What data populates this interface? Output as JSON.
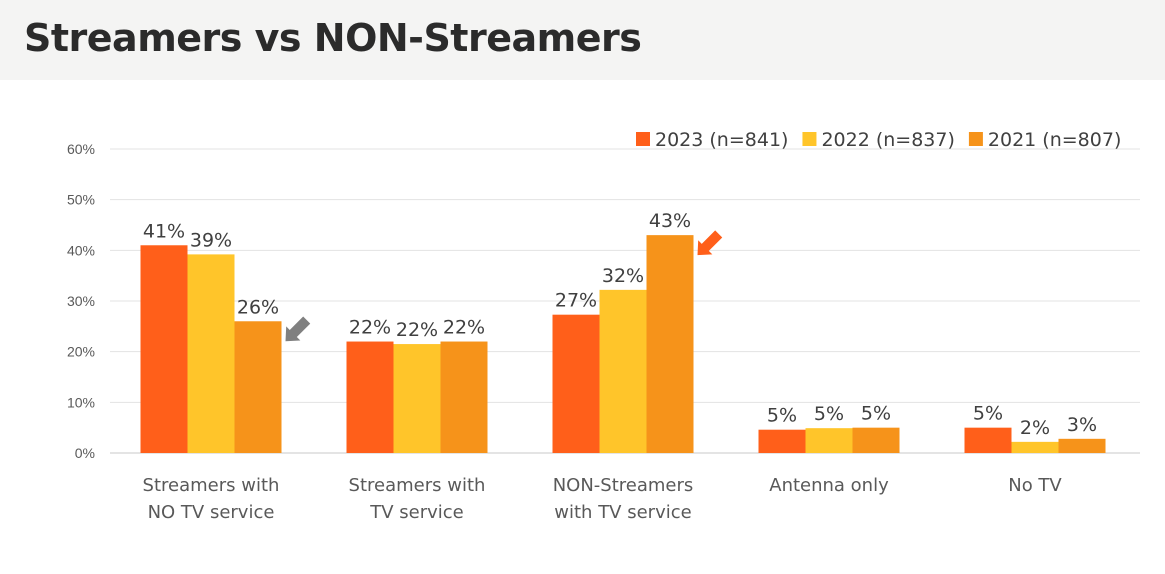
{
  "chart_data": {
    "type": "bar",
    "title": "Streamers vs NON-Streamers",
    "categories": [
      [
        "Streamers with",
        "NO TV service"
      ],
      [
        "Streamers with",
        "TV service"
      ],
      [
        "NON-Streamers",
        "with TV service"
      ],
      [
        "Antenna only"
      ],
      [
        "No TV"
      ]
    ],
    "series": [
      {
        "name": "2023 (n=841)",
        "color": "#ff5f1a",
        "values": [
          41,
          22,
          27.3,
          4.6,
          5
        ],
        "labels": [
          "41%",
          "22%",
          "27%",
          "5%",
          "5%"
        ]
      },
      {
        "name": "2022 (n=837)",
        "color": "#ffc52a",
        "values": [
          39.2,
          21.5,
          32.2,
          4.9,
          2.2
        ],
        "labels": [
          "39%",
          "22%",
          "32%",
          "5%",
          "2%"
        ]
      },
      {
        "name": "2021 (n=807)",
        "color": "#f6931a",
        "values": [
          26,
          22,
          43,
          5,
          2.8
        ],
        "labels": [
          "26%",
          "22%",
          "43%",
          "5%",
          "3%"
        ]
      }
    ],
    "yticks": [
      "0%",
      "10%",
      "20%",
      "30%",
      "40%",
      "50%",
      "60%"
    ],
    "ylim": [
      0,
      60
    ],
    "grid": true,
    "legend": "top-right",
    "annotations": [
      {
        "type": "arrow",
        "category": 0,
        "series": 2,
        "color": "#808080",
        "icon": "arrow-down-left-icon"
      },
      {
        "type": "arrow",
        "category": 2,
        "series": 2,
        "color": "#ff5f1a",
        "icon": "arrow-down-left-icon"
      }
    ]
  }
}
